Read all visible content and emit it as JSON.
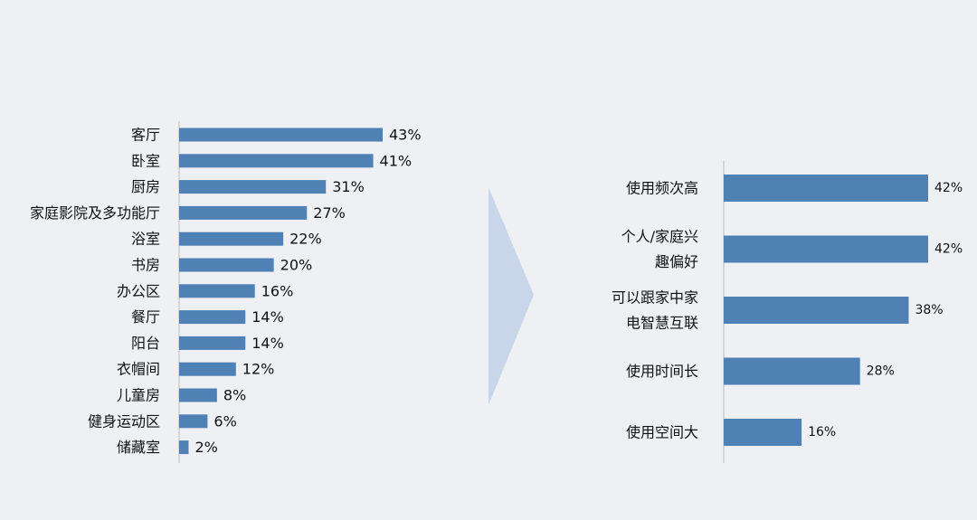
{
  "colors": {
    "bar": "#4f81b4",
    "axis": "#bdbdbd",
    "arrow": "#c9d6e9",
    "background": "#eef0f4"
  },
  "chart_data": [
    {
      "type": "bar",
      "orientation": "horizontal",
      "title": "",
      "xlabel": "",
      "ylabel": "",
      "value_suffix": "%",
      "categories": [
        "客厅",
        "卧室",
        "厨房",
        "家庭影院及多功能厅",
        "浴室",
        "书房",
        "办公区",
        "餐厅",
        "阳台",
        "衣帽间",
        "儿童房",
        "健身运动区",
        "储藏室"
      ],
      "values": [
        43,
        41,
        31,
        27,
        22,
        20,
        16,
        14,
        14,
        12,
        8,
        6,
        2
      ],
      "xlim": [
        0,
        43
      ],
      "grid": false,
      "legend": "none"
    },
    {
      "type": "bar",
      "orientation": "horizontal",
      "title": "",
      "xlabel": "",
      "ylabel": "",
      "value_suffix": "%",
      "categories": [
        [
          "使用频次高"
        ],
        [
          "个人/家庭兴",
          "趣偏好"
        ],
        [
          "可以跟家中家",
          "电智慧互联"
        ],
        [
          "使用时间长"
        ],
        [
          "使用空间大"
        ]
      ],
      "values": [
        42,
        42,
        38,
        28,
        16
      ],
      "xlim": [
        0,
        42
      ],
      "grid": false,
      "legend": "none"
    }
  ],
  "connector": {
    "icon": "chevron-right-arrow-icon"
  }
}
